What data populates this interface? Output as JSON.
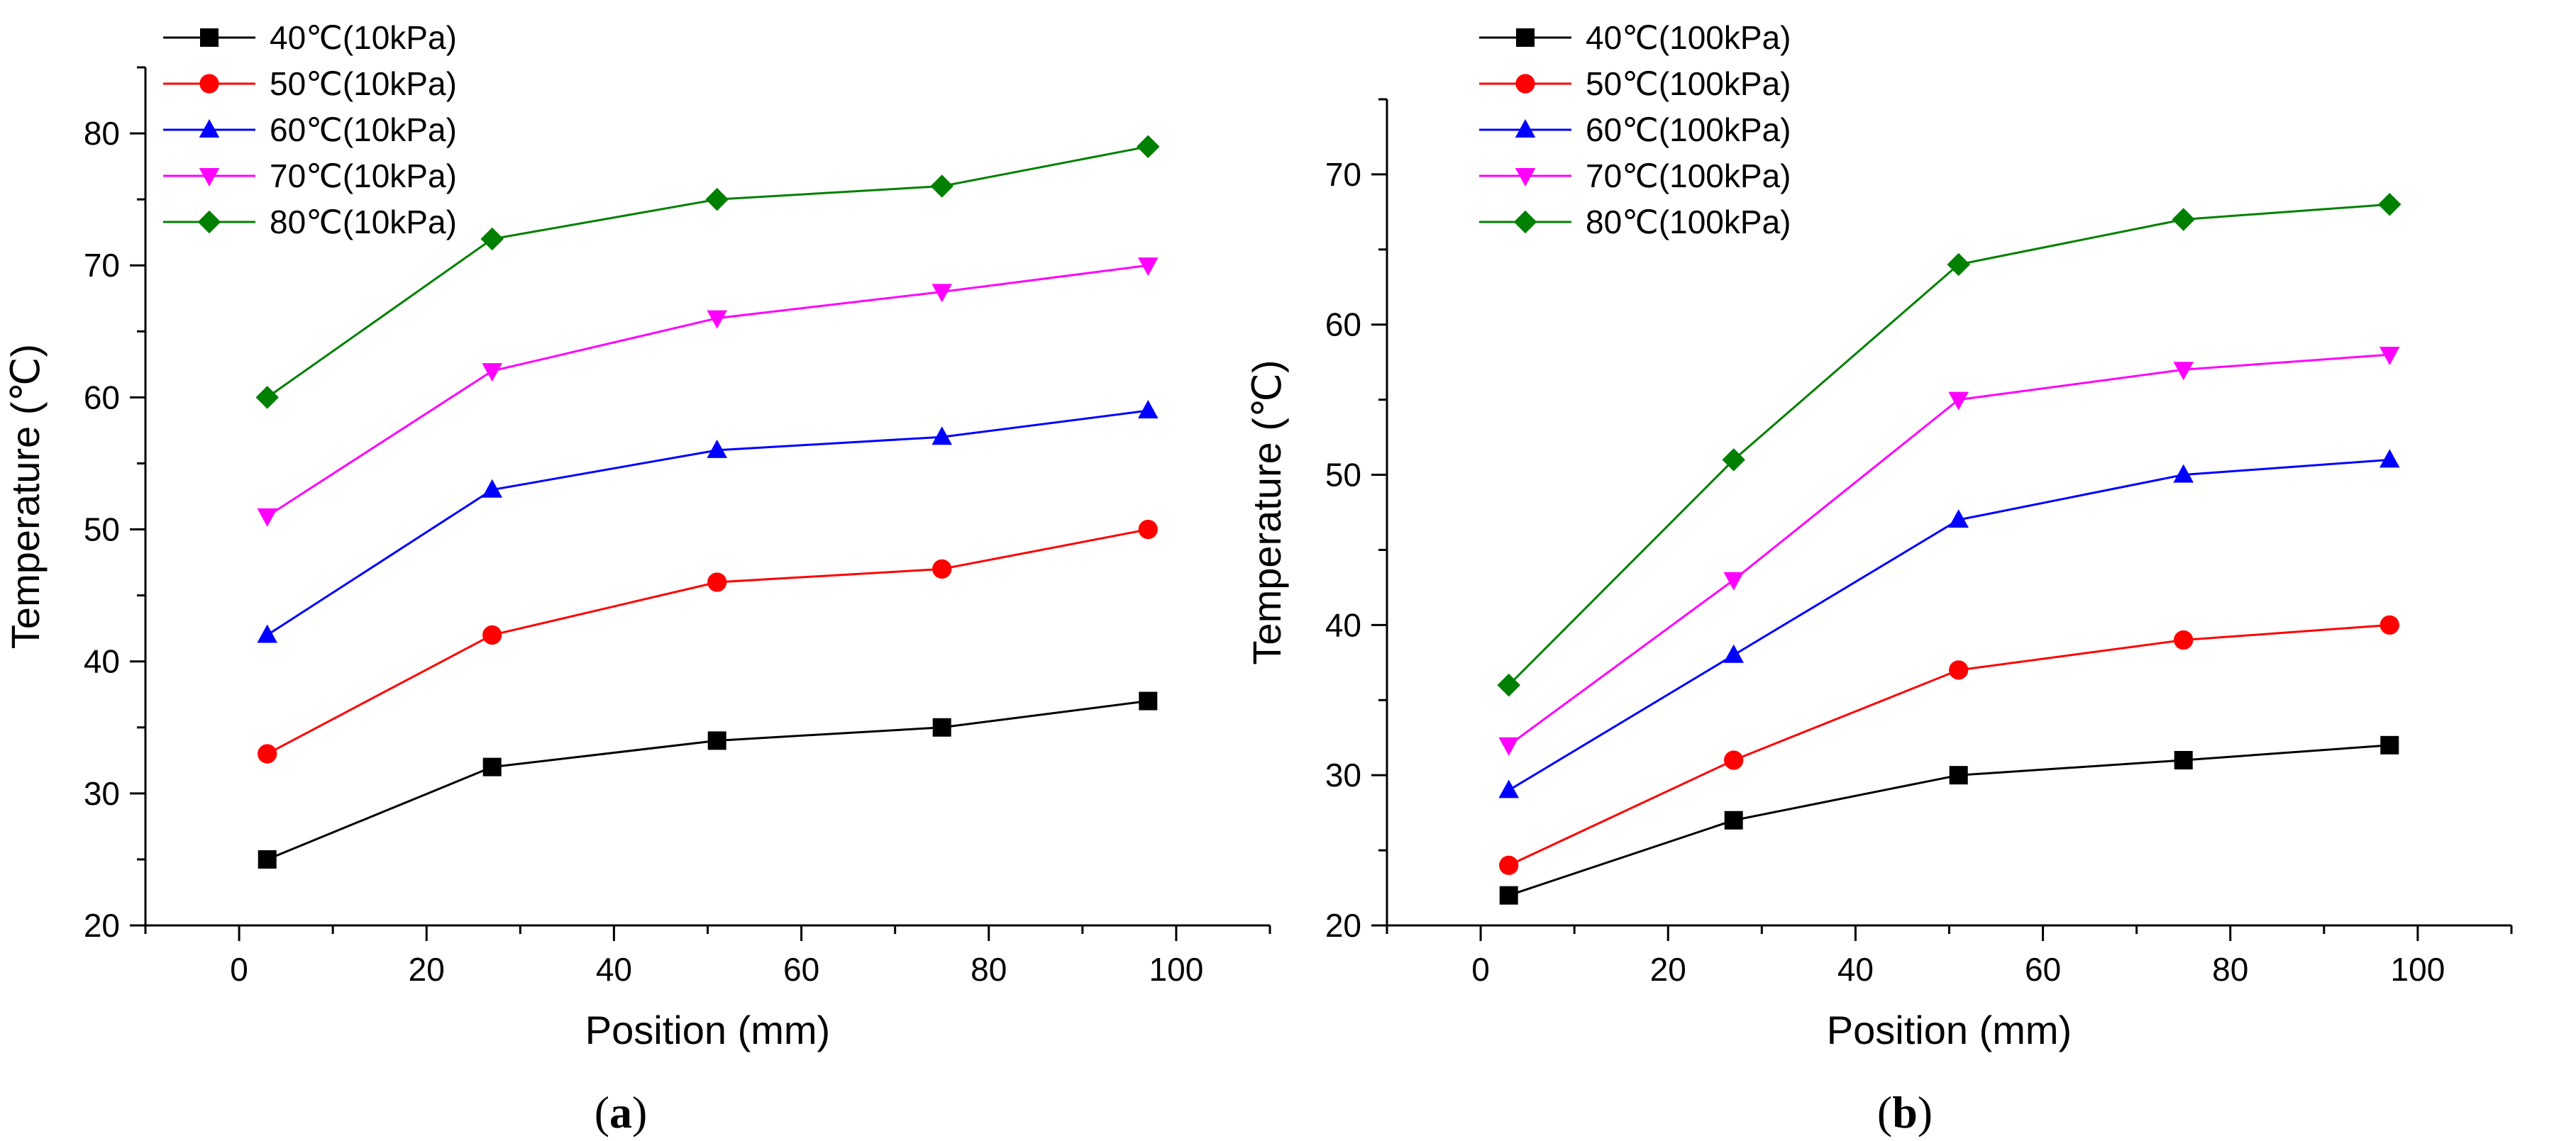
{
  "chart_data": [
    {
      "type": "line",
      "panel_label": "a",
      "xlabel": "Position (mm)",
      "ylabel": "Temperature (℃)",
      "xlim": [
        -10,
        110
      ],
      "ylim": [
        20,
        85
      ],
      "xticks": [
        0,
        20,
        40,
        60,
        80,
        100
      ],
      "yticks": [
        20,
        30,
        40,
        50,
        60,
        70,
        80
      ],
      "legend_position": "top-left",
      "x": [
        3,
        27,
        51,
        75,
        97
      ],
      "series": [
        {
          "name": "40℃(10kPa)",
          "color": "#000000",
          "marker": "square",
          "values": [
            25,
            32,
            34,
            35,
            37
          ]
        },
        {
          "name": "50℃(10kPa)",
          "color": "#ff0000",
          "marker": "circle",
          "values": [
            33,
            42,
            46,
            47,
            50
          ]
        },
        {
          "name": "60℃(10kPa)",
          "color": "#0000ff",
          "marker": "triangle-up",
          "values": [
            42,
            53,
            56,
            57,
            59
          ]
        },
        {
          "name": "70℃(10kPa)",
          "color": "#ff00ff",
          "marker": "triangle-down",
          "values": [
            51,
            62,
            66,
            68,
            70
          ]
        },
        {
          "name": "80℃(10kPa)",
          "color": "#008000",
          "marker": "diamond",
          "values": [
            60,
            72,
            75,
            76,
            79
          ]
        }
      ]
    },
    {
      "type": "line",
      "panel_label": "b",
      "xlabel": "Position (mm)",
      "ylabel": "Temperature (℃)",
      "xlim": [
        -10,
        110
      ],
      "ylim": [
        20,
        75
      ],
      "xticks": [
        0,
        20,
        40,
        60,
        80,
        100
      ],
      "yticks": [
        20,
        30,
        40,
        50,
        60,
        70
      ],
      "legend_position": "top-left",
      "x": [
        3,
        27,
        51,
        75,
        97
      ],
      "series": [
        {
          "name": "40℃(100kPa)",
          "color": "#000000",
          "marker": "square",
          "values": [
            22,
            27,
            30,
            31,
            32
          ]
        },
        {
          "name": "50℃(100kPa)",
          "color": "#ff0000",
          "marker": "circle",
          "values": [
            24,
            31,
            37,
            39,
            40
          ]
        },
        {
          "name": "60℃(100kPa)",
          "color": "#0000ff",
          "marker": "triangle-up",
          "values": [
            29,
            38,
            47,
            50,
            51
          ]
        },
        {
          "name": "70℃(100kPa)",
          "color": "#ff00ff",
          "marker": "triangle-down",
          "values": [
            32,
            43,
            55,
            57,
            58
          ]
        },
        {
          "name": "80℃(100kPa)",
          "color": "#008000",
          "marker": "diamond",
          "values": [
            36,
            51,
            64,
            67,
            68
          ]
        }
      ]
    }
  ]
}
